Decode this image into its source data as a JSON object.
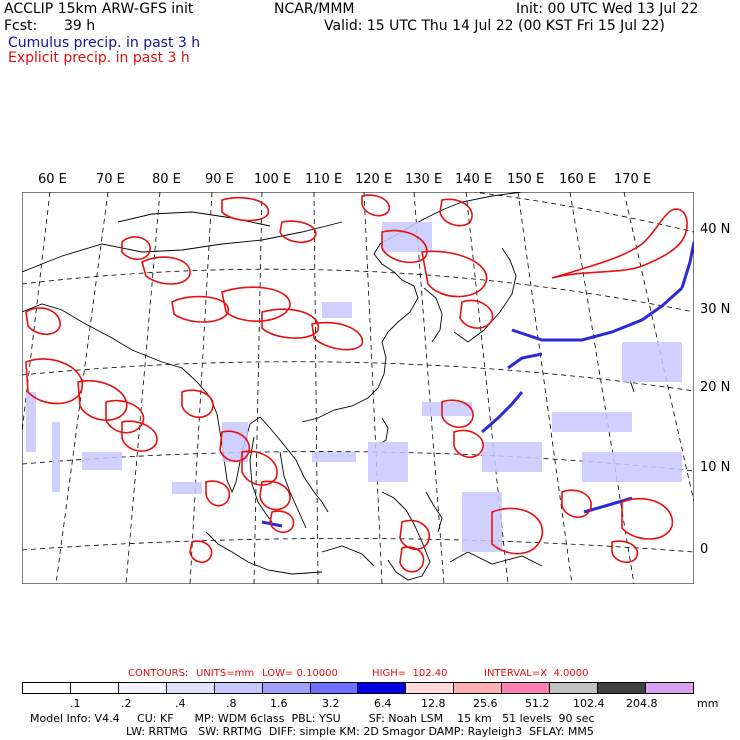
{
  "header": {
    "model": "ACCLIP 15km ARW-GFS init",
    "org": "NCAR/MMM",
    "init": "Init: 00 UTC Wed 13 Jul 22",
    "fcst_label": "Fcst:",
    "fcst_value": "39 h",
    "valid": "Valid: 15 UTC Thu 14 Jul 22 (00 KST Fri 15 Jul 22)",
    "legend_cumulus": "Cumulus precip. in past 3 h",
    "legend_explicit": "Explicit precip. in past 3 h"
  },
  "map": {
    "lon_labels": [
      "60 E",
      "70 E",
      "80 E",
      "90 E",
      "100 E",
      "110 E",
      "120 E",
      "130 E",
      "140 E",
      "150 E",
      "160 E",
      "170 E"
    ],
    "lat_labels": [
      "40 N",
      "30 N",
      "20 N",
      "10 N",
      "0"
    ],
    "colors": {
      "cumulus": "#2a2ad8",
      "explicit": "#e81010",
      "coast": "#000000"
    }
  },
  "contours": {
    "label": "CONTOURS:",
    "units": "UNITS=mm",
    "low": "LOW= 0.10000",
    "high": "HIGH=  102.40",
    "interval": "INTERVAL=X  4.0000"
  },
  "colorbar": {
    "ticks": [
      ".1",
      ".2",
      ".4",
      ".8",
      "1.6",
      "3.2",
      "6.4",
      "12.8",
      "25.6",
      "51.2",
      "102.4",
      "204.8"
    ],
    "unit": "mm",
    "colors": [
      "#ffffff",
      "#ffffff",
      "#f2f2ff",
      "#e0e0ff",
      "#c8c8ff",
      "#a0a0ff",
      "#7070ff",
      "#0000e0",
      "#ffd8d8",
      "#ffb0b0",
      "#ff80b0",
      "#c0c0c0",
      "#404040",
      "#d8a0f0"
    ]
  },
  "footer": {
    "line1": "Model Info: V4.4     CU: KF      MP: WDM 6class  PBL: YSU        SF: Noah LSM    15 km   51 levels  90 sec",
    "line2": "LW: RRTMG   SW: RRTMG  DIFF: simple KM: 2D Smagor DAMP: Rayleigh3  SFLAY: MM5"
  }
}
